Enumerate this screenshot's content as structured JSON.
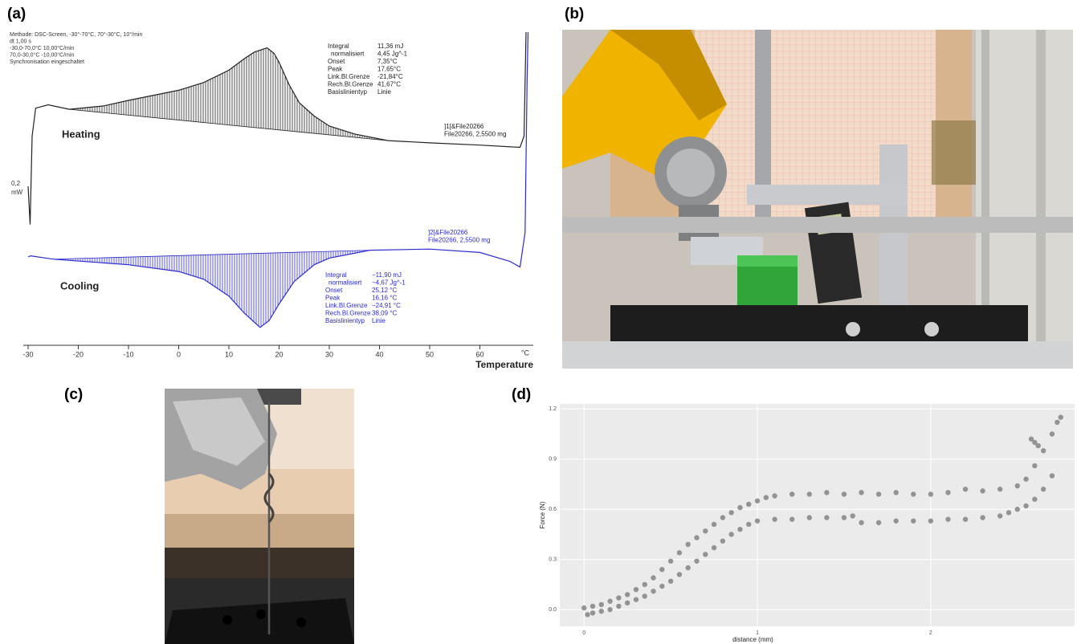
{
  "panel_labels": [
    "(a)",
    "(b)",
    "(c)",
    "(d)"
  ],
  "chart_data": [
    {
      "type": "line",
      "method": [
        "Methode: DSC-Screen, -30°-70°C, 70°-30°C, 10°/min",
        "dt 1,00 s",
        "-30,0-70,0°C 10,00°C/min",
        "70,0-30,0°C -10,00°C/min",
        "Synchronisation eingeschaltet"
      ],
      "xlabel": "Temperature",
      "xunit": "°C",
      "scale_label": [
        "0,2",
        "mW"
      ],
      "xlim": [
        -30,
        70
      ],
      "xticks": [
        -30,
        -20,
        -10,
        0,
        10,
        20,
        30,
        40,
        50,
        60
      ],
      "ylim": [
        -1.4,
        1.4
      ],
      "series": [
        {
          "name": "Heating",
          "color": "#222222",
          "file_label": [
            "]1[&File20266",
            "File20266, 2,5500 mg"
          ],
          "table": [
            [
              "Integral",
              "11,36 mJ"
            ],
            [
              "normalisiert",
              "4,45 Jg^-1"
            ],
            [
              "Onset",
              "7,35°C"
            ],
            [
              "Peak",
              "17,65°C"
            ],
            [
              "Link.Bl.Grenze",
              "-21,84°C"
            ],
            [
              "Rech.Bl.Grenze",
              "41,67°C"
            ],
            [
              "Basislinientyp",
              "Linie"
            ]
          ],
          "x": [
            -30,
            -29.6,
            -29.2,
            -28.5,
            -26,
            -21.8,
            -15,
            -10,
            0,
            5,
            10,
            13,
            15,
            17.6,
            19,
            20,
            22,
            24,
            27,
            30,
            35,
            41.7,
            50,
            60,
            68,
            68.8,
            69.2
          ],
          "values": [
            0.02,
            -0.32,
            0.47,
            0.72,
            0.75,
            0.71,
            0.74,
            0.79,
            0.88,
            0.95,
            1.06,
            1.16,
            1.22,
            1.26,
            1.21,
            1.13,
            0.93,
            0.77,
            0.65,
            0.56,
            0.49,
            0.43,
            0.41,
            0.39,
            0.37,
            0.47,
            1.4
          ]
        },
        {
          "name": "Cooling",
          "color": "#2b2bd0",
          "file_label": [
            "]2[&File20266",
            "File20266, 2,5500 mg"
          ],
          "table": [
            [
              "Integral",
              "−11,90 mJ"
            ],
            [
              "normalisiert",
              "−4,67 Jg^-1"
            ],
            [
              "Onset",
              "25,12 °C"
            ],
            [
              "Peak",
              "16,16 °C"
            ],
            [
              "Link.Bl.Grenze",
              "−24,91 °C"
            ],
            [
              "Rech.Bl.Grenze",
              "38,09 °C"
            ],
            [
              "Basislinientyp",
              "Linie"
            ]
          ],
          "x": [
            -30,
            -29.5,
            -24.9,
            -10,
            0,
            5,
            10,
            13,
            16.2,
            18,
            20,
            23,
            27,
            30,
            38.1,
            50,
            60,
            66,
            68,
            69,
            69.4,
            69.6
          ],
          "values": [
            -0.61,
            -0.6,
            -0.63,
            -0.68,
            -0.74,
            -0.81,
            -0.96,
            -1.11,
            -1.24,
            -1.18,
            -1.03,
            -0.83,
            -0.68,
            -0.62,
            -0.55,
            -0.54,
            -0.57,
            -0.65,
            -0.7,
            -0.39,
            0.97,
            1.4
          ]
        }
      ]
    },
    {
      "type": "scatter",
      "xlabel": "distance (mm)",
      "ylabel": "Force (N)",
      "xlim": [
        -0.14,
        2.83
      ],
      "xticks": [
        0,
        1,
        2
      ],
      "ylim": [
        -0.1,
        1.23
      ],
      "yticks": [
        {
          "value": 0,
          "label": "0.0"
        },
        0.3,
        0.6,
        0.9,
        1.2
      ],
      "grid": true,
      "color": "#8a8a8a",
      "x": [
        0.0,
        0.05,
        0.1,
        0.15,
        0.2,
        0.25,
        0.3,
        0.35,
        0.4,
        0.45,
        0.5,
        0.55,
        0.6,
        0.65,
        0.7,
        0.75,
        0.8,
        0.85,
        0.9,
        0.95,
        1.0,
        1.05,
        1.1,
        1.2,
        1.3,
        1.4,
        1.5,
        1.6,
        1.7,
        1.8,
        1.9,
        2.0,
        2.1,
        2.2,
        2.3,
        2.4,
        2.5,
        2.55,
        2.6,
        2.65,
        2.7,
        2.73,
        2.75,
        2.7,
        2.65,
        2.6,
        2.55,
        2.5,
        2.45,
        2.4,
        2.3,
        2.2,
        2.1,
        2.0,
        1.9,
        1.8,
        1.7,
        1.6,
        1.55,
        1.5,
        1.4,
        1.3,
        1.2,
        1.1,
        1.0,
        0.95,
        0.9,
        0.85,
        0.8,
        0.75,
        0.7,
        0.65,
        0.6,
        0.55,
        0.5,
        0.45,
        0.4,
        0.35,
        0.3,
        0.25,
        0.2,
        0.15,
        0.1,
        0.05,
        0.02,
        2.58,
        2.6,
        2.62
      ],
      "values": [
        0.01,
        0.02,
        0.03,
        0.05,
        0.07,
        0.09,
        0.12,
        0.15,
        0.19,
        0.24,
        0.29,
        0.34,
        0.39,
        0.43,
        0.47,
        0.51,
        0.55,
        0.58,
        0.61,
        0.63,
        0.65,
        0.67,
        0.68,
        0.69,
        0.69,
        0.7,
        0.69,
        0.7,
        0.69,
        0.7,
        0.69,
        0.69,
        0.7,
        0.72,
        0.71,
        0.72,
        0.74,
        0.78,
        0.86,
        0.95,
        1.05,
        1.12,
        1.15,
        0.8,
        0.72,
        0.66,
        0.62,
        0.6,
        0.58,
        0.56,
        0.55,
        0.54,
        0.54,
        0.53,
        0.53,
        0.53,
        0.52,
        0.52,
        0.56,
        0.55,
        0.55,
        0.55,
        0.54,
        0.54,
        0.53,
        0.51,
        0.48,
        0.45,
        0.41,
        0.37,
        0.33,
        0.29,
        0.25,
        0.21,
        0.17,
        0.14,
        0.11,
        0.08,
        0.06,
        0.04,
        0.02,
        0.0,
        -0.01,
        -0.02,
        -0.03,
        1.02,
        1.0,
        0.98
      ]
    }
  ]
}
